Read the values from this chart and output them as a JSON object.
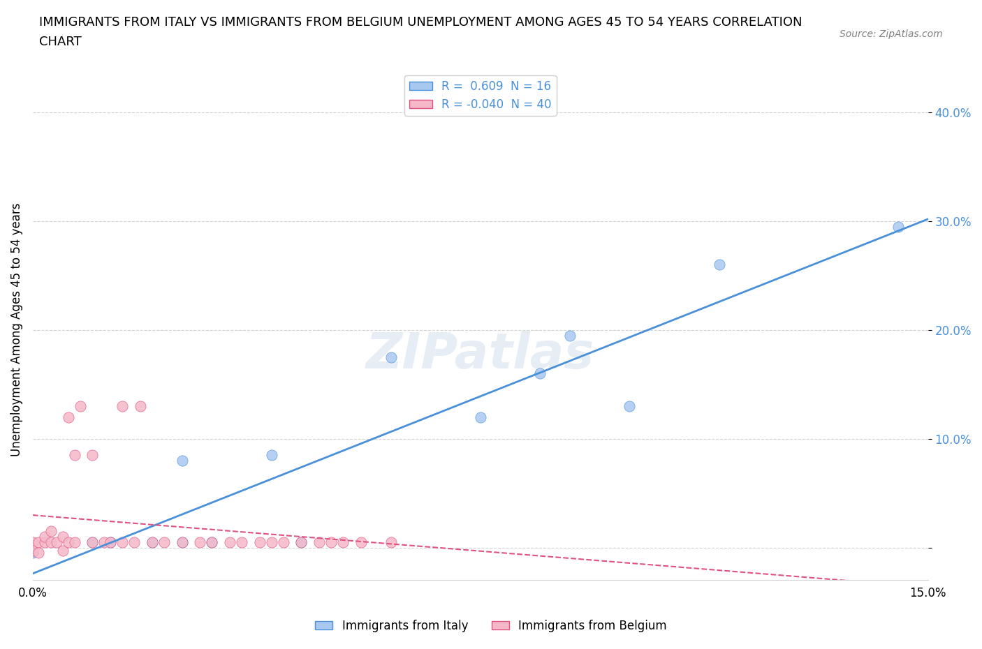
{
  "title_line1": "IMMIGRANTS FROM ITALY VS IMMIGRANTS FROM BELGIUM UNEMPLOYMENT AMONG AGES 45 TO 54 YEARS CORRELATION",
  "title_line2": "CHART",
  "source": "Source: ZipAtlas.com",
  "ylabel": "Unemployment Among Ages 45 to 54 years",
  "xlim": [
    0.0,
    0.15
  ],
  "ylim": [
    -0.03,
    0.43
  ],
  "yticks": [
    0.0,
    0.1,
    0.2,
    0.3,
    0.4
  ],
  "ytick_labels": [
    "",
    "10.0%",
    "20.0%",
    "30.0%",
    "40.0%"
  ],
  "italy_R": 0.609,
  "italy_N": 16,
  "belgium_R": -0.04,
  "belgium_N": 40,
  "italy_color": "#a8c8f0",
  "italy_line_color": "#4a90d9",
  "belgium_color": "#f5b8c8",
  "belgium_line_color": "#e05080",
  "italy_scatter_x": [
    0.0,
    0.01,
    0.013,
    0.02,
    0.025,
    0.025,
    0.03,
    0.04,
    0.045,
    0.06,
    0.075,
    0.085,
    0.09,
    0.1,
    0.115,
    0.145
  ],
  "italy_scatter_y": [
    -0.005,
    0.005,
    0.005,
    0.005,
    0.005,
    0.08,
    0.005,
    0.085,
    0.005,
    0.175,
    0.12,
    0.16,
    0.195,
    0.13,
    0.26,
    0.295
  ],
  "belgium_scatter_x": [
    0.0,
    0.0,
    0.001,
    0.001,
    0.002,
    0.002,
    0.003,
    0.003,
    0.004,
    0.005,
    0.005,
    0.006,
    0.006,
    0.007,
    0.007,
    0.008,
    0.01,
    0.01,
    0.012,
    0.013,
    0.015,
    0.015,
    0.017,
    0.018,
    0.02,
    0.022,
    0.025,
    0.028,
    0.03,
    0.033,
    0.035,
    0.038,
    0.04,
    0.042,
    0.045,
    0.048,
    0.05,
    0.052,
    0.055,
    0.06
  ],
  "belgium_scatter_y": [
    0.005,
    -0.003,
    0.005,
    -0.005,
    0.005,
    0.01,
    0.005,
    0.015,
    0.005,
    -0.003,
    0.01,
    0.005,
    0.12,
    0.005,
    0.085,
    0.13,
    0.005,
    0.085,
    0.005,
    0.005,
    0.13,
    0.005,
    0.005,
    0.13,
    0.005,
    0.005,
    0.005,
    0.005,
    0.005,
    0.005,
    0.005,
    0.005,
    0.005,
    0.005,
    0.005,
    0.005,
    0.005,
    0.005,
    0.005,
    0.005
  ]
}
